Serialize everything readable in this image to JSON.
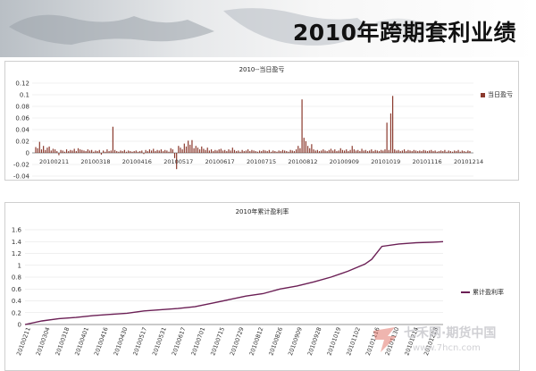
{
  "page": {
    "title": "2010年跨期套利业绩"
  },
  "watermark": {
    "line1": "七禾网·期货中国",
    "line2": "www.7hcn.com"
  },
  "chart_data": [
    {
      "type": "bar",
      "title": "2010--当日盈亏",
      "series": [
        {
          "name": "当日盈亏",
          "color": "#8b3a2e"
        }
      ],
      "ylim": [
        -0.04,
        0.12
      ],
      "yticks": [
        -0.04,
        -0.02,
        0,
        0.02,
        0.04,
        0.06,
        0.08,
        0.1,
        0.12
      ],
      "ytick_labels": [
        "-0.04",
        "-0.02",
        "0",
        "0.02",
        "0.04",
        "0.06",
        "0.08",
        "0.1",
        "0.12"
      ],
      "xtick_labels": [
        "20100211",
        "20100318",
        "20100416",
        "20100517",
        "20100617",
        "20100715",
        "20100812",
        "20100909",
        "20101019",
        "20101116",
        "20101214"
      ],
      "n_days": 226,
      "bars": [
        [
          0,
          0.01
        ],
        [
          1,
          0.008
        ],
        [
          2,
          0.019
        ],
        [
          3,
          0.006
        ],
        [
          4,
          0.012
        ],
        [
          5,
          0.005
        ],
        [
          6,
          0.009
        ],
        [
          7,
          0.011
        ],
        [
          8,
          0.004
        ],
        [
          9,
          0.007
        ],
        [
          10,
          0.006
        ],
        [
          11,
          0.003
        ],
        [
          12,
          -0.004
        ],
        [
          13,
          0.005
        ],
        [
          14,
          0.004
        ],
        [
          15,
          0.002
        ],
        [
          16,
          0.006
        ],
        [
          17,
          0.003
        ],
        [
          18,
          0.005
        ],
        [
          19,
          0.004
        ],
        [
          20,
          0.007
        ],
        [
          21,
          0.003
        ],
        [
          22,
          0.008
        ],
        [
          23,
          0.006
        ],
        [
          24,
          0.005
        ],
        [
          25,
          0.004
        ],
        [
          26,
          0.003
        ],
        [
          27,
          0.006
        ],
        [
          28,
          0.004
        ],
        [
          29,
          0.005
        ],
        [
          30,
          0.002
        ],
        [
          31,
          0.004
        ],
        [
          32,
          0.003
        ],
        [
          33,
          0.005
        ],
        [
          34,
          -0.003
        ],
        [
          35,
          0.004
        ],
        [
          36,
          0.002
        ],
        [
          37,
          0.006
        ],
        [
          38,
          0.003
        ],
        [
          39,
          0.004
        ],
        [
          40,
          0.045
        ],
        [
          41,
          0.005
        ],
        [
          42,
          0.003
        ],
        [
          43,
          0.002
        ],
        [
          44,
          0.004
        ],
        [
          45,
          0.003
        ],
        [
          46,
          0.005
        ],
        [
          47,
          0.002
        ],
        [
          48,
          0.004
        ],
        [
          49,
          0.003
        ],
        [
          50,
          0.002
        ],
        [
          51,
          0.003
        ],
        [
          52,
          0.004
        ],
        [
          53,
          0.002
        ],
        [
          54,
          0.003
        ],
        [
          55,
          0.004
        ],
        [
          56,
          -0.002
        ],
        [
          57,
          0.005
        ],
        [
          58,
          0.003
        ],
        [
          59,
          0.006
        ],
        [
          60,
          0.004
        ],
        [
          61,
          0.007
        ],
        [
          62,
          0.003
        ],
        [
          63,
          0.005
        ],
        [
          64,
          0.004
        ],
        [
          65,
          0.006
        ],
        [
          66,
          0.003
        ],
        [
          67,
          0.005
        ],
        [
          68,
          0.004
        ],
        [
          69,
          0.002
        ],
        [
          70,
          0.008
        ],
        [
          71,
          0.006
        ],
        [
          72,
          -0.009
        ],
        [
          73,
          -0.028
        ],
        [
          74,
          0.012
        ],
        [
          75,
          0.009
        ],
        [
          76,
          0.006
        ],
        [
          77,
          0.016
        ],
        [
          78,
          0.011
        ],
        [
          79,
          0.021
        ],
        [
          80,
          0.014
        ],
        [
          81,
          0.022
        ],
        [
          82,
          0.008
        ],
        [
          83,
          0.012
        ],
        [
          84,
          0.009
        ],
        [
          85,
          0.006
        ],
        [
          86,
          0.011
        ],
        [
          87,
          0.007
        ],
        [
          88,
          0.005
        ],
        [
          89,
          0.009
        ],
        [
          90,
          0.004
        ],
        [
          91,
          0.006
        ],
        [
          92,
          0.003
        ],
        [
          93,
          0.005
        ],
        [
          94,
          0.004
        ],
        [
          95,
          0.006
        ],
        [
          96,
          0.007
        ],
        [
          97,
          0.004
        ],
        [
          98,
          0.005
        ],
        [
          99,
          0.003
        ],
        [
          100,
          0.006
        ],
        [
          101,
          0.004
        ],
        [
          102,
          0.009
        ],
        [
          103,
          0.005
        ],
        [
          104,
          0.003
        ],
        [
          105,
          0.004
        ],
        [
          106,
          0.002
        ],
        [
          107,
          0.005
        ],
        [
          108,
          0.003
        ],
        [
          109,
          0.004
        ],
        [
          110,
          0.006
        ],
        [
          111,
          0.003
        ],
        [
          112,
          0.005
        ],
        [
          113,
          0.004
        ],
        [
          114,
          0.003
        ],
        [
          115,
          0.002
        ],
        [
          116,
          0.004
        ],
        [
          117,
          0.003
        ],
        [
          118,
          0.005
        ],
        [
          119,
          0.004
        ],
        [
          120,
          0.003
        ],
        [
          121,
          0.005
        ],
        [
          122,
          0.002
        ],
        [
          123,
          0.004
        ],
        [
          124,
          0.003
        ],
        [
          125,
          0.002
        ],
        [
          126,
          0.004
        ],
        [
          127,
          0.003
        ],
        [
          128,
          0.005
        ],
        [
          129,
          0.004
        ],
        [
          130,
          0.003
        ],
        [
          131,
          0.002
        ],
        [
          132,
          0.005
        ],
        [
          133,
          0.004
        ],
        [
          134,
          0.003
        ],
        [
          135,
          0.006
        ],
        [
          136,
          0.012
        ],
        [
          137,
          0.008
        ],
        [
          138,
          0.092
        ],
        [
          139,
          0.026
        ],
        [
          140,
          0.02
        ],
        [
          141,
          0.012
        ],
        [
          142,
          0.008
        ],
        [
          143,
          0.015
        ],
        [
          144,
          0.006
        ],
        [
          145,
          0.004
        ],
        [
          146,
          0.005
        ],
        [
          147,
          0.003
        ],
        [
          148,
          0.004
        ],
        [
          149,
          0.006
        ],
        [
          150,
          0.004
        ],
        [
          151,
          0.003
        ],
        [
          152,
          0.005
        ],
        [
          153,
          0.007
        ],
        [
          154,
          0.004
        ],
        [
          155,
          0.006
        ],
        [
          156,
          0.003
        ],
        [
          157,
          0.004
        ],
        [
          158,
          0.008
        ],
        [
          159,
          0.005
        ],
        [
          160,
          0.004
        ],
        [
          161,
          0.006
        ],
        [
          162,
          0.003
        ],
        [
          163,
          0.005
        ],
        [
          164,
          0.012
        ],
        [
          165,
          0.006
        ],
        [
          166,
          0.004
        ],
        [
          167,
          0.005
        ],
        [
          168,
          0.003
        ],
        [
          169,
          0.007
        ],
        [
          170,
          0.004
        ],
        [
          171,
          0.005
        ],
        [
          172,
          0.003
        ],
        [
          173,
          0.004
        ],
        [
          174,
          0.006
        ],
        [
          175,
          0.003
        ],
        [
          176,
          0.005
        ],
        [
          177,
          0.004
        ],
        [
          178,
          0.003
        ],
        [
          179,
          0.005
        ],
        [
          180,
          0.004
        ],
        [
          181,
          0.006
        ],
        [
          182,
          0.052
        ],
        [
          183,
          0.005
        ],
        [
          184,
          0.068
        ],
        [
          185,
          0.098
        ],
        [
          186,
          0.006
        ],
        [
          187,
          0.004
        ],
        [
          188,
          0.005
        ],
        [
          189,
          0.003
        ],
        [
          190,
          0.004
        ],
        [
          191,
          0.006
        ],
        [
          192,
          0.003
        ],
        [
          193,
          0.005
        ],
        [
          194,
          0.004
        ],
        [
          195,
          0.003
        ],
        [
          196,
          0.005
        ],
        [
          197,
          0.004
        ],
        [
          198,
          0.003
        ],
        [
          199,
          0.004
        ],
        [
          200,
          0.003
        ],
        [
          201,
          0.005
        ],
        [
          202,
          0.004
        ],
        [
          203,
          0.003
        ],
        [
          204,
          0.004
        ],
        [
          205,
          0.005
        ],
        [
          206,
          0.003
        ],
        [
          207,
          0.004
        ],
        [
          208,
          0.002
        ],
        [
          209,
          0.003
        ],
        [
          210,
          0.004
        ],
        [
          211,
          0.003
        ],
        [
          212,
          0.005
        ],
        [
          213,
          0.002
        ],
        [
          214,
          0.004
        ],
        [
          215,
          0.003
        ],
        [
          216,
          0.002
        ],
        [
          217,
          0.004
        ],
        [
          218,
          0.003
        ],
        [
          219,
          0.005
        ],
        [
          220,
          0.002
        ],
        [
          221,
          0.004
        ],
        [
          222,
          0.003
        ],
        [
          223,
          0.002
        ],
        [
          224,
          0.004
        ],
        [
          225,
          0.003
        ]
      ]
    },
    {
      "type": "line",
      "title": "2010年累计盈利率",
      "series": [
        {
          "name": "累计盈利率",
          "color": "#6b1f55"
        }
      ],
      "ylim": [
        0,
        1.6
      ],
      "yticks": [
        0,
        0.2,
        0.4,
        0.6,
        0.8,
        1,
        1.2,
        1.4,
        1.6
      ],
      "ytick_labels": [
        "0",
        "0.2",
        "0.4",
        "0.6",
        "0.8",
        "1",
        "1.2",
        "1.4",
        "1.6"
      ],
      "xtick_labels": [
        "20100211",
        "20100304",
        "20100318",
        "20100401",
        "20100416",
        "20100430",
        "20100517",
        "20100531",
        "20100617",
        "20100701",
        "20100715",
        "20100729",
        "20100812",
        "20100826",
        "20100909",
        "20100928",
        "20101019",
        "20101102",
        "20101116",
        "20101130",
        "20101214",
        "20101228"
      ],
      "points": [
        [
          0,
          0.0
        ],
        [
          1,
          0.06
        ],
        [
          2,
          0.1
        ],
        [
          3,
          0.12
        ],
        [
          4,
          0.15
        ],
        [
          5,
          0.17
        ],
        [
          6,
          0.19
        ],
        [
          7,
          0.23
        ],
        [
          8,
          0.25
        ],
        [
          9,
          0.27
        ],
        [
          10,
          0.3
        ],
        [
          11,
          0.36
        ],
        [
          12,
          0.42
        ],
        [
          13,
          0.48
        ],
        [
          14,
          0.52
        ],
        [
          15,
          0.6
        ],
        [
          16,
          0.65
        ],
        [
          17,
          0.72
        ],
        [
          18,
          0.8
        ],
        [
          19,
          0.9
        ],
        [
          20,
          1.02
        ],
        [
          20.4,
          1.1
        ],
        [
          21,
          1.32
        ],
        [
          22,
          1.36
        ],
        [
          23,
          1.38
        ],
        [
          24,
          1.39
        ],
        [
          24.6,
          1.4
        ]
      ],
      "xdomain": [
        0,
        24.6
      ]
    }
  ]
}
